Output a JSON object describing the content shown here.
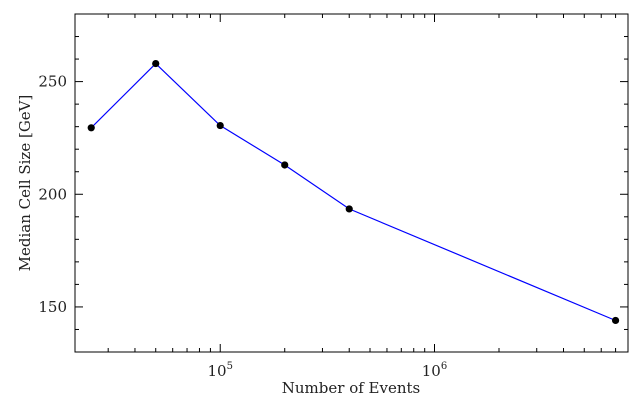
{
  "chart_data": {
    "type": "line",
    "title": "",
    "xlabel": "Number of Events",
    "ylabel": "Median Cell Size [GeV]",
    "x_scale": "log",
    "xlim": [
      21000,
      8000000
    ],
    "ylim": [
      130,
      280
    ],
    "x_ticks": [
      {
        "value": 100000,
        "base": "10",
        "exponent": "5"
      },
      {
        "value": 1000000,
        "base": "10",
        "exponent": "6"
      }
    ],
    "y_ticks": [
      150,
      200,
      250
    ],
    "grid": false,
    "legend": "none",
    "series": [
      {
        "color": "#0000ff",
        "marker_color": "#000000",
        "x": [
          25000,
          50000,
          100000,
          200000,
          400000,
          7000000
        ],
        "y": [
          229.5,
          258,
          230.5,
          213,
          193.5,
          144
        ]
      }
    ]
  }
}
